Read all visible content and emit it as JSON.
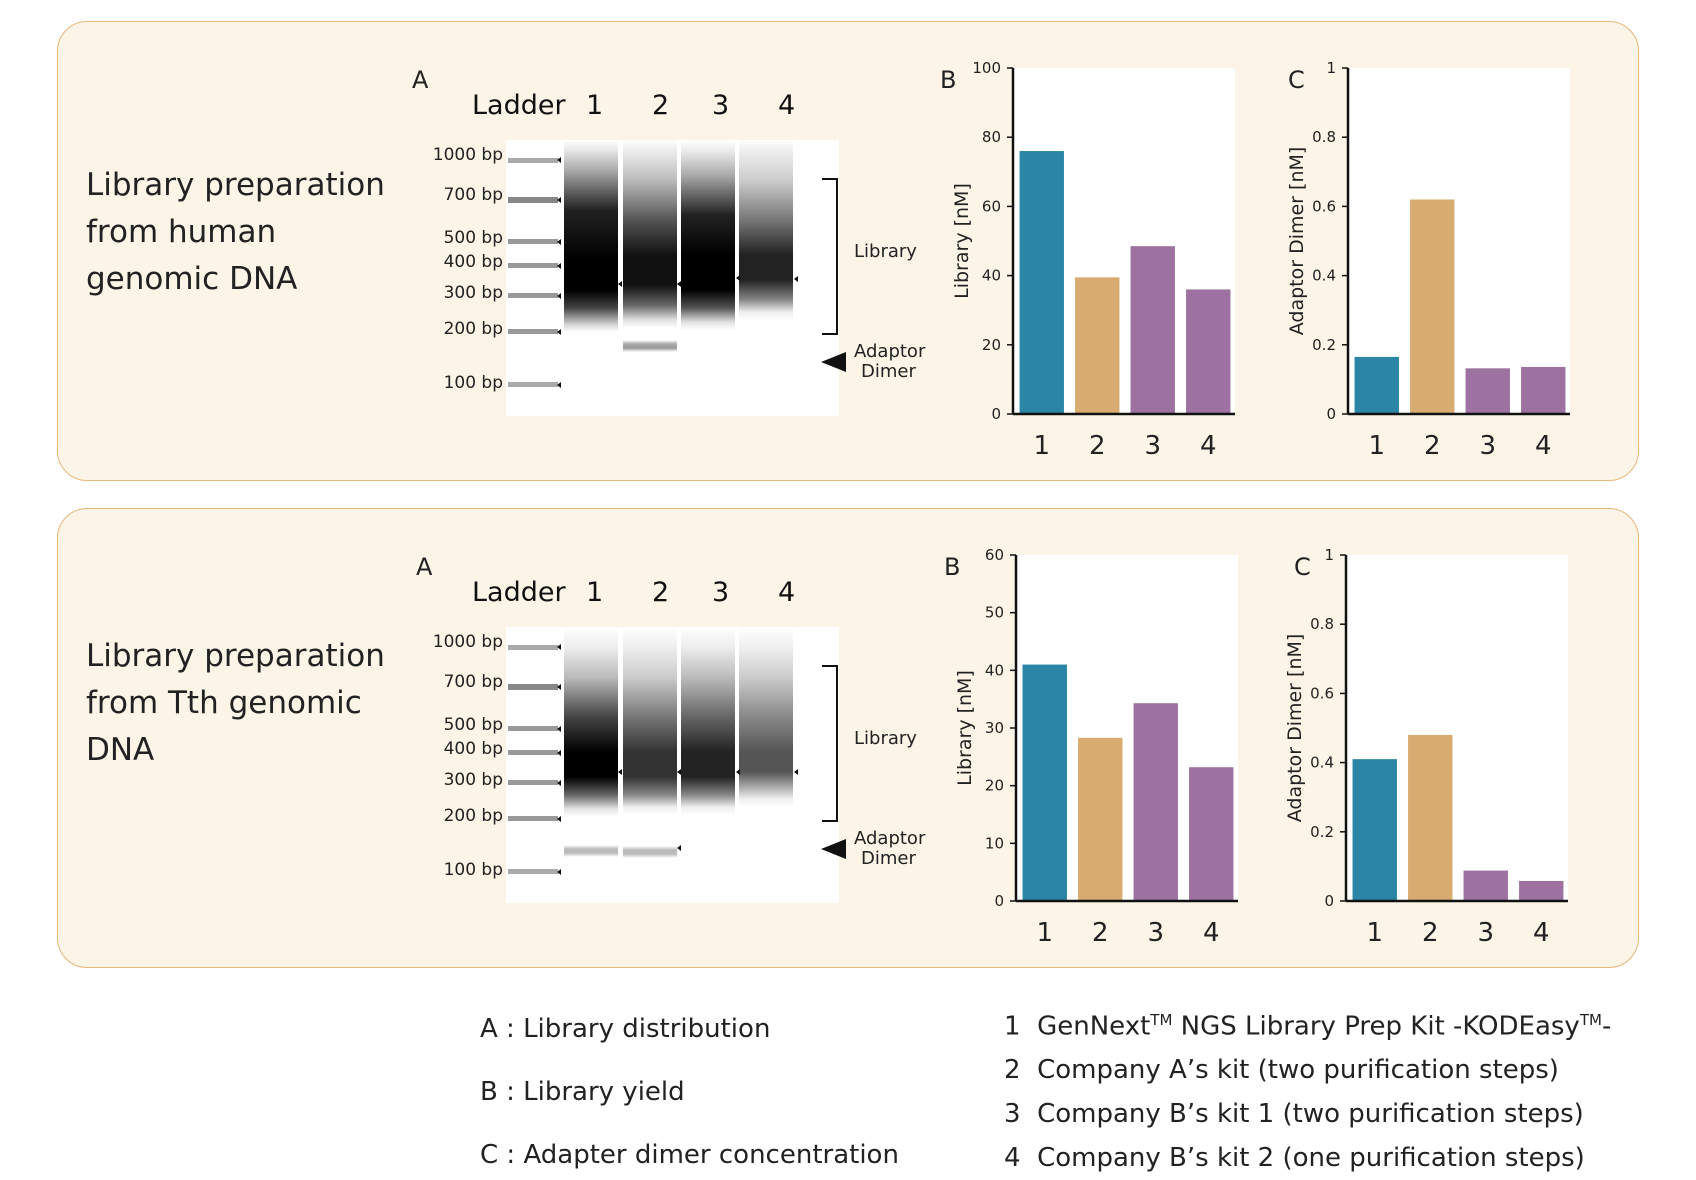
{
  "colors": {
    "teal": "#2a85a6",
    "tan": "#d8ab71",
    "purple": "#9e72a0",
    "panel_bg": "#fdf4e8",
    "panel_border": "#e8b77a"
  },
  "panels": [
    {
      "title": "Library preparation from human genomic DNA",
      "gel": {
        "letter": "A",
        "ladder_label": "Ladder",
        "lane_labels": [
          "1",
          "2",
          "3",
          "4"
        ],
        "bp_labels": [
          "1000 bp",
          "700 bp",
          "500 bp",
          "400 bp",
          "300 bp",
          "200 bp",
          "100 bp"
        ],
        "library_label": "Library",
        "adaptor_label_1": "Adaptor",
        "adaptor_label_2": "Dimer"
      }
    },
    {
      "title": "Library preparation from Tth genomic DNA",
      "gel": {
        "letter": "A",
        "ladder_label": "Ladder",
        "lane_labels": [
          "1",
          "2",
          "3",
          "4"
        ],
        "bp_labels": [
          "1000 bp",
          "700 bp",
          "500 bp",
          "400 bp",
          "300 bp",
          "200 bp",
          "100 bp"
        ],
        "library_label": "Library",
        "adaptor_label_1": "Adaptor",
        "adaptor_label_2": "Dimer"
      }
    }
  ],
  "chart_data": [
    {
      "id": "human-library",
      "letter": "B",
      "type": "bar",
      "categories": [
        "1",
        "2",
        "3",
        "4"
      ],
      "values": [
        76,
        39.5,
        48.5,
        36
      ],
      "ylabel": "Library [nM]",
      "ylim": [
        0,
        100
      ],
      "yticks": [
        "0",
        "20",
        "40",
        "60",
        "80",
        "100"
      ]
    },
    {
      "id": "human-dimer",
      "letter": "C",
      "type": "bar",
      "categories": [
        "1",
        "2",
        "3",
        "4"
      ],
      "values": [
        0.165,
        0.62,
        0.132,
        0.136
      ],
      "ylabel": "Adaptor Dimer [nM]",
      "ylim": [
        0,
        1
      ],
      "yticks": [
        "0",
        "0.2",
        "0.4",
        "0.6",
        "0.8",
        "1"
      ]
    },
    {
      "id": "tth-library",
      "letter": "B",
      "type": "bar",
      "categories": [
        "1",
        "2",
        "3",
        "4"
      ],
      "values": [
        41,
        28.3,
        34.3,
        23.2
      ],
      "ylabel": "Library [nM]",
      "ylim": [
        0,
        60
      ],
      "yticks": [
        "0",
        "10",
        "20",
        "30",
        "40",
        "50",
        "60"
      ]
    },
    {
      "id": "tth-dimer",
      "letter": "C",
      "type": "bar",
      "categories": [
        "1",
        "2",
        "3",
        "4"
      ],
      "values": [
        0.41,
        0.48,
        0.088,
        0.058
      ],
      "ylabel": "Adaptor Dimer [nM]",
      "ylim": [
        0,
        1
      ],
      "yticks": [
        "0",
        "0.2",
        "0.4",
        "0.6",
        "0.8",
        "1"
      ]
    }
  ],
  "legend": {
    "left": [
      "A : Library distribution",
      "B : Library yield",
      "C : Adapter dimer concentration"
    ],
    "right": [
      {
        "num": "1",
        "text": "GenNext",
        "sup1": "TM",
        "text2": " NGS Library Prep Kit -KODEasy",
        "sup2": "TM",
        "text3": "-"
      },
      {
        "num": "2",
        "text": "Company A’s kit (two purification steps)"
      },
      {
        "num": "3",
        "text": "Company B’s kit 1 (two purification steps)"
      },
      {
        "num": "4",
        "text": "Company B’s kit 2 (one purification steps)"
      }
    ]
  }
}
